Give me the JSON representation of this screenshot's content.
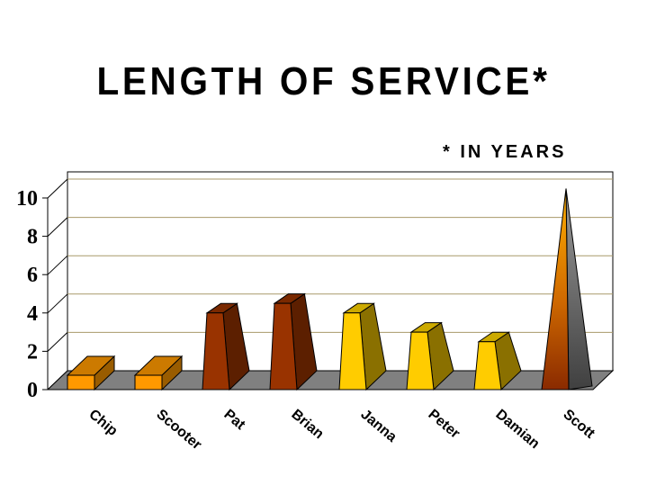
{
  "chart_data": {
    "type": "bar",
    "title": "LENGTH OF SERVICE*",
    "subtitle": "* IN YEARS",
    "categories": [
      "Chip",
      "Scooter",
      "Pat",
      "Brian",
      "Janna",
      "Peter",
      "Damian",
      "Scott"
    ],
    "values": [
      0.75,
      0.75,
      4,
      4.5,
      4,
      3,
      2.5,
      10
    ],
    "ylim": [
      0,
      10
    ],
    "yticks": [
      "0",
      "2",
      "4",
      "6",
      "8",
      "10"
    ],
    "shapes": [
      "box",
      "box",
      "pyramid",
      "pyramid",
      "pyramid",
      "pyramid",
      "pyramid",
      "cone"
    ],
    "grid": true,
    "colors": {
      "gridline": "#a89a6a",
      "floor": "#808080",
      "chip": "#ff9900",
      "pat": "#993300",
      "janna": "#ffcc00",
      "scott_front": "#ff9900",
      "scott_side": "#707070"
    }
  }
}
